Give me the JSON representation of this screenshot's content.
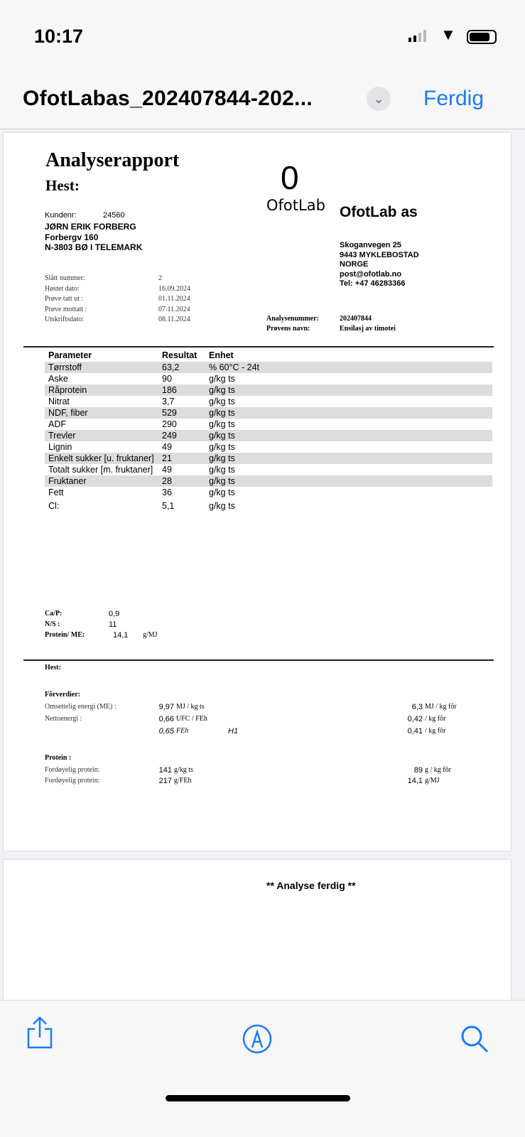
{
  "status": {
    "time": "10:17"
  },
  "nav": {
    "title": "OfotLabas_202407844-202...",
    "done": "Ferdig"
  },
  "report": {
    "title": "Analyserapport",
    "subtitle": "Hest:",
    "logo_text": "OfotLab",
    "lab_name": "OfotLab as",
    "customer": {
      "label": "Kundenr:",
      "number": "24560",
      "name": "JØRN ERIK FORBERG",
      "street": "Forbergv  160",
      "city": "N-3803 BØ I TELEMARK"
    },
    "lab_address": [
      "Skoganvegen 25",
      "9443 MYKLEBOSTAD",
      "NORGE",
      "post@ofotlab.no",
      "Tel: +47 46283366"
    ],
    "info": [
      [
        "Slått nummer:",
        "2"
      ],
      [
        "Høstet dato:",
        "16.09.2024"
      ],
      [
        "Prøve tatt ut :",
        "01.11.2024"
      ],
      [
        "Prøve mottatt :",
        "07.11.2024"
      ],
      [
        "Utskriftsdato:",
        "08.11.2024"
      ]
    ],
    "analysis": [
      [
        "Analysenummer:",
        "202407844"
      ],
      [
        "Prøvens navn:",
        "Ensilasj av timotei"
      ]
    ],
    "table": {
      "headers": [
        "Parameter",
        "Resultat",
        "Enhet"
      ],
      "rows": [
        [
          "Tørrstoff",
          "63,2",
          "%     60°C - 24t"
        ],
        [
          "Aske",
          "90",
          "g/kg ts"
        ],
        [
          "Råprotein",
          "186",
          "g/kg ts"
        ],
        [
          "Nitrat",
          "3,7",
          "g/kg ts"
        ],
        [
          "NDF, fiber",
          "529",
          "g/kg ts"
        ],
        [
          "ADF",
          "290",
          "g/kg ts"
        ],
        [
          "Trevler",
          "249",
          "g/kg ts"
        ],
        [
          "Lignin",
          "49",
          "g/kg ts"
        ],
        [
          "Enkelt sukker [u. fruktaner]",
          "21",
          "g/kg ts"
        ],
        [
          "Totalt sukker [m. fruktaner]",
          "49",
          "g/kg ts"
        ],
        [
          "Fruktaner",
          "28",
          "g/kg ts"
        ],
        [
          "Fett",
          "36",
          "g/kg ts"
        ],
        [
          "Cl:",
          "5,1",
          "g/kg ts"
        ]
      ]
    },
    "ratios": [
      [
        "Ca/P:",
        "0,9",
        ""
      ],
      [
        "N/S :",
        "11",
        ""
      ],
      [
        "Protein/ ME:",
        "14,1",
        "g/MJ"
      ]
    ],
    "horse_label": "Hest:",
    "feed_heading": "Fôrverdier:",
    "feed": [
      [
        "Omsettelig energi (ME) :",
        "9,97",
        "MJ / kg ts",
        "",
        "6,3",
        "MJ / kg fôr"
      ],
      [
        "Nettoenergi :",
        "0,66",
        "UFC / FEh",
        "",
        "0,42",
        "/ kg fôr"
      ],
      [
        "",
        "0,65",
        "FEh",
        "H1",
        "0,41",
        "/ kg fôr"
      ]
    ],
    "protein_heading": "Protein :",
    "protein": [
      [
        "Fordøyelig protein:",
        "141",
        "g/kg ts",
        "89",
        "g / kg fôr"
      ],
      [
        "Fordøyelig protein:",
        "217",
        "g/FEh",
        "14,1",
        "g/MJ"
      ]
    ],
    "page2_text": "** Analyse ferdig **"
  },
  "colors": {
    "accent": "#1a7cf5",
    "row_shade": "#dcdcdc"
  }
}
